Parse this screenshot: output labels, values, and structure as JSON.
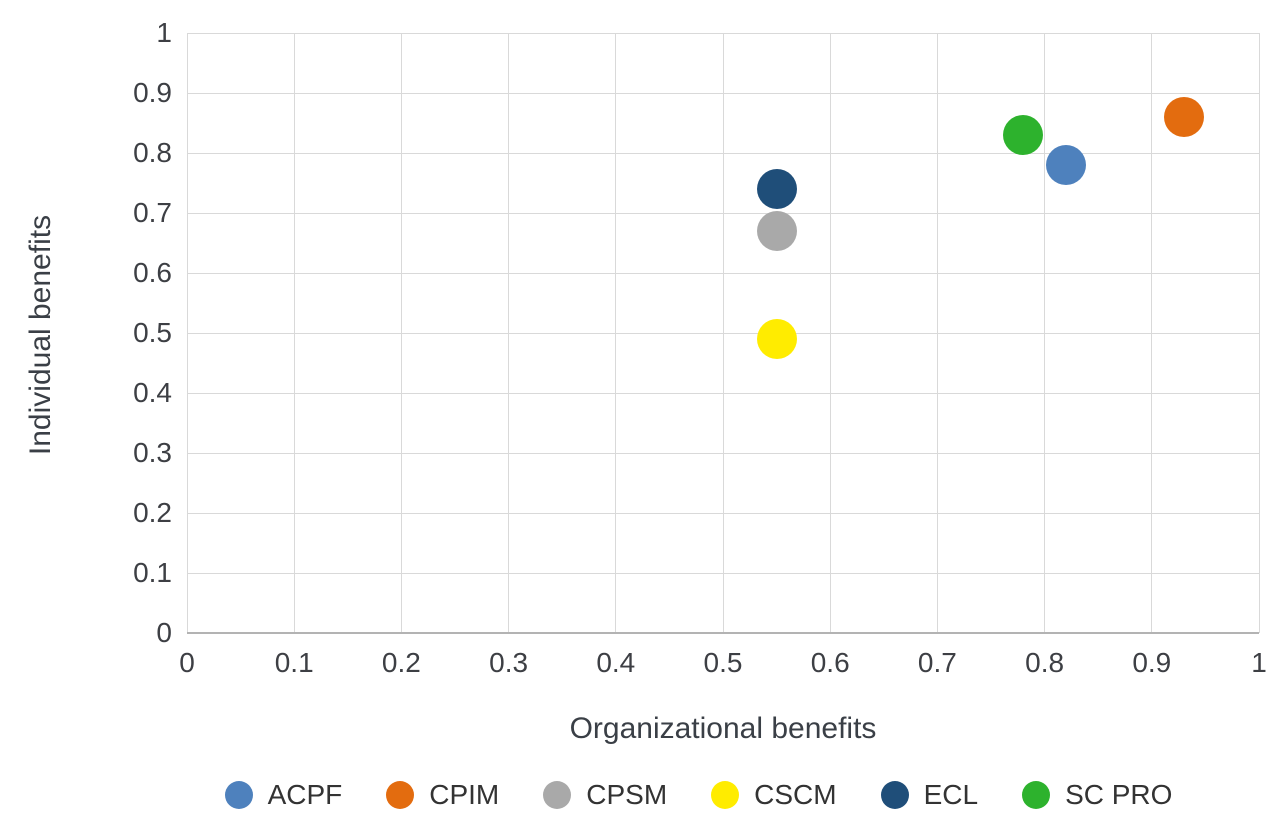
{
  "chart_data": {
    "type": "scatter",
    "title": "",
    "xlabel": "Organizational benefits",
    "ylabel": "Individual benefits",
    "xlim": [
      0,
      1
    ],
    "ylim": [
      0,
      1
    ],
    "grid": true,
    "legend_position": "bottom",
    "xticks": {
      "labels": [
        "0",
        "0.1",
        "0.2",
        "0.3",
        "0.4",
        "0.5",
        "0.6",
        "0.7",
        "0.8",
        "0.9",
        "1"
      ],
      "values": [
        0,
        0.1,
        0.2,
        0.3,
        0.4,
        0.5,
        0.6,
        0.7,
        0.8,
        0.9,
        1
      ]
    },
    "yticks": {
      "labels": [
        "0",
        "0.1",
        "0.2",
        "0.3",
        "0.4",
        "0.5",
        "0.6",
        "0.7",
        "0.8",
        "0.9",
        "1"
      ],
      "values": [
        0,
        0.1,
        0.2,
        0.3,
        0.4,
        0.5,
        0.6,
        0.7,
        0.8,
        0.9,
        1
      ]
    },
    "series": [
      {
        "name": "ACPF",
        "color": "#4e81bd",
        "x": 0.82,
        "y": 0.78
      },
      {
        "name": "CPIM",
        "color": "#e36c0f",
        "x": 0.93,
        "y": 0.86
      },
      {
        "name": "CPSM",
        "color": "#a9a9a9",
        "x": 0.55,
        "y": 0.67
      },
      {
        "name": "CSCM",
        "color": "#ffec00",
        "x": 0.55,
        "y": 0.49
      },
      {
        "name": "ECL",
        "color": "#1f4e79",
        "x": 0.55,
        "y": 0.74
      },
      {
        "name": "SC PRO",
        "color": "#2db22d",
        "x": 0.78,
        "y": 0.83
      }
    ],
    "marker_diameter": 40,
    "colors": {
      "gridline": "#d9d9d9",
      "axis_line": "#b3b3b3",
      "tick_text": "#3d3f44"
    }
  }
}
